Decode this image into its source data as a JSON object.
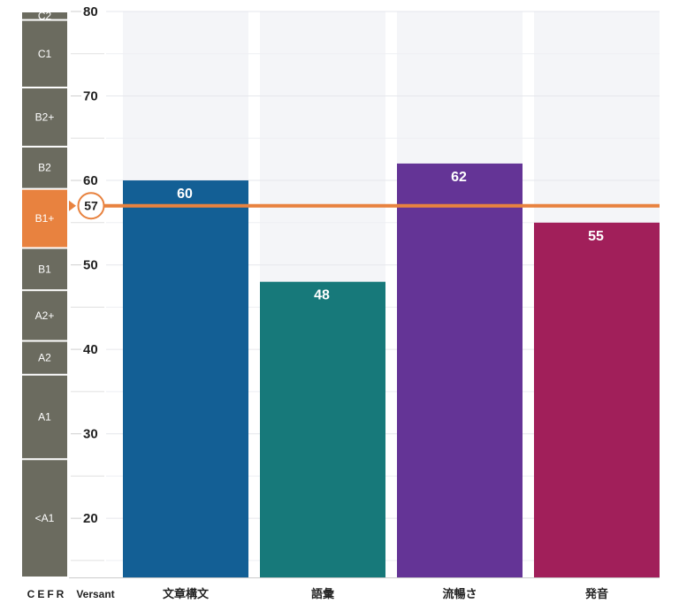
{
  "chart_data": {
    "type": "bar",
    "categories": [
      "文章構文",
      "語彙",
      "流暢さ",
      "発音"
    ],
    "values": [
      60,
      48,
      62,
      55
    ],
    "colors": [
      "#135f95",
      "#17797a",
      "#643496",
      "#a11f5a"
    ],
    "ylim": [
      13,
      80
    ],
    "yticks": [
      20,
      30,
      40,
      50,
      60,
      70,
      80
    ],
    "overall_score": 57,
    "overall_score_label": "57",
    "cefr_bands": [
      {
        "label": "C2",
        "min": 79,
        "max": 80
      },
      {
        "label": "C1",
        "min": 71,
        "max": 79
      },
      {
        "label": "B2+",
        "min": 64,
        "max": 71
      },
      {
        "label": "B2",
        "min": 59,
        "max": 64
      },
      {
        "label": "B1+",
        "min": 52,
        "max": 59,
        "highlight": true
      },
      {
        "label": "B1",
        "min": 47,
        "max": 52
      },
      {
        "label": "A2+",
        "min": 41,
        "max": 47
      },
      {
        "label": "A2",
        "min": 37,
        "max": 41
      },
      {
        "label": "A1",
        "min": 27,
        "max": 37
      },
      {
        "label": "<A1",
        "min": 13,
        "max": 27
      }
    ],
    "xlabel_cefr": "CEFR",
    "xlabel_versant": "Versant",
    "accent": "#e8823f",
    "band_color": "#6b6b5f",
    "band_highlight": "#e8823f"
  }
}
